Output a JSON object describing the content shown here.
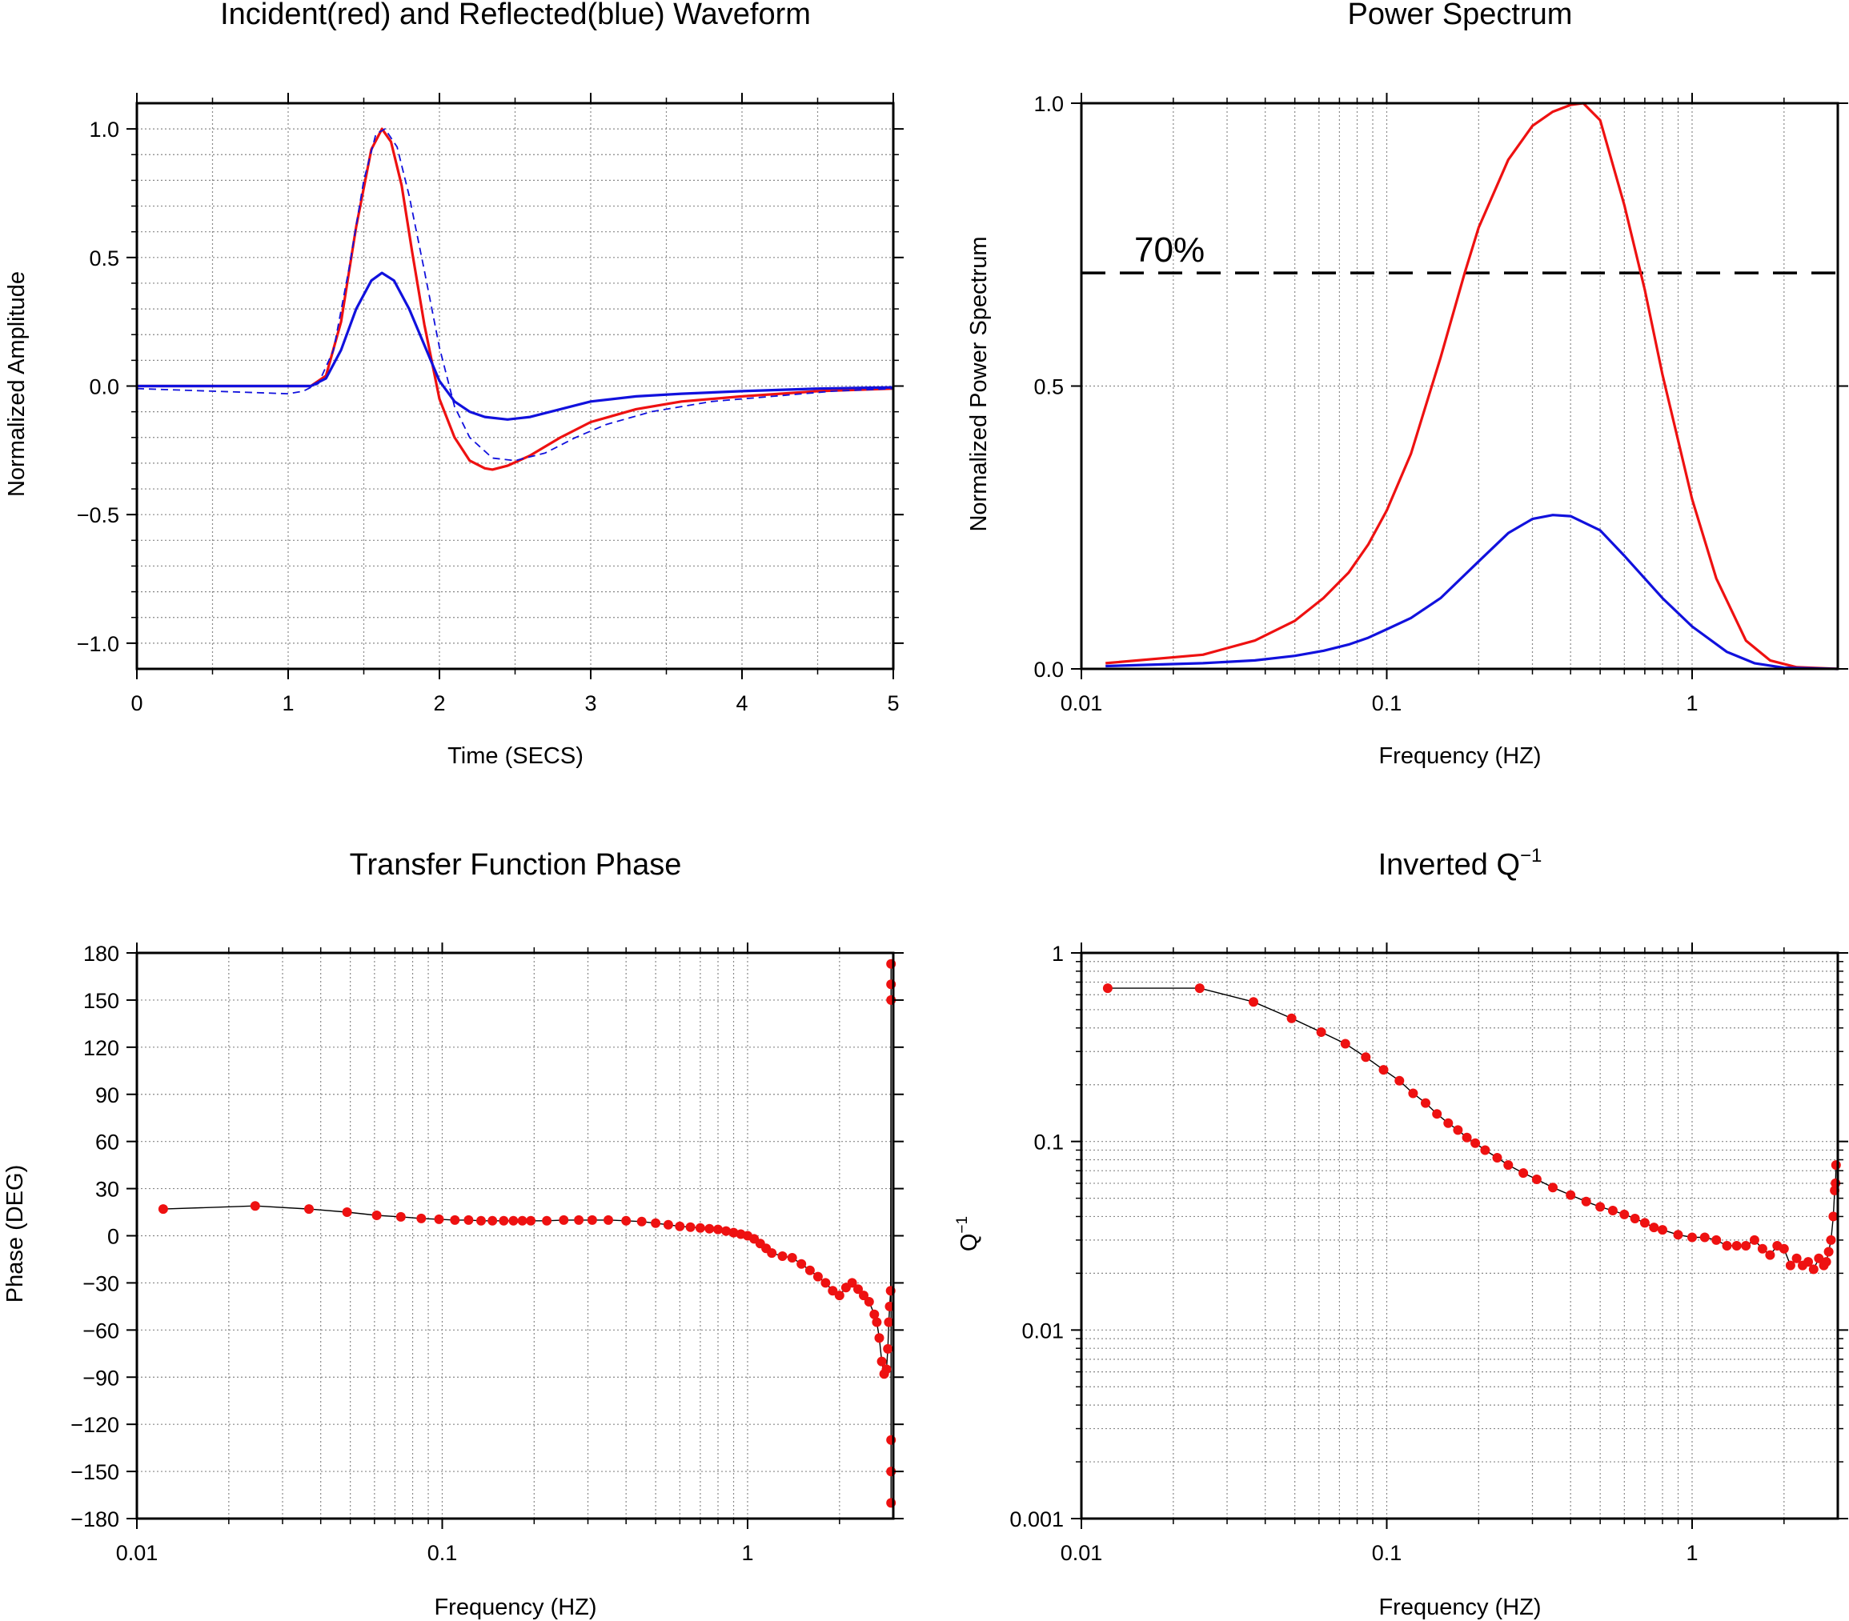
{
  "colors": {
    "red": "#ee1111",
    "blue": "#1111dd",
    "grid": "#888888",
    "black": "#000000"
  },
  "chart_data": [
    {
      "id": "waveform",
      "type": "line",
      "title": "Incident(red) and Reflected(blue) Waveform",
      "xlabel": "Time (SECS)",
      "ylabel": "Normalized Amplitude",
      "xscale": "linear",
      "yscale": "linear",
      "xlim": [
        0,
        5
      ],
      "ylim": [
        -1.1,
        1.1
      ],
      "xticks": [
        0,
        1,
        2,
        3,
        4,
        5
      ],
      "xtick_labels": [
        "0",
        "1",
        "2",
        "3",
        "4",
        "5"
      ],
      "yticks": [
        -1.0,
        -0.5,
        0.0,
        0.5,
        1.0
      ],
      "ytick_labels": [
        "−1.0",
        "−0.5",
        "0.0",
        "0.5",
        "1.0"
      ],
      "grid": true,
      "series": [
        {
          "color": "red",
          "style": "solid",
          "x": [
            0,
            0.5,
            1.0,
            1.15,
            1.25,
            1.35,
            1.45,
            1.55,
            1.62,
            1.68,
            1.75,
            1.82,
            1.9,
            2.0,
            2.1,
            2.2,
            2.3,
            2.35,
            2.45,
            2.6,
            2.8,
            3.0,
            3.3,
            3.6,
            4.0,
            4.5,
            5.0
          ],
          "y": [
            0.0,
            0.0,
            0.0,
            0.0,
            0.04,
            0.25,
            0.62,
            0.92,
            1.0,
            0.95,
            0.78,
            0.52,
            0.24,
            -0.05,
            -0.2,
            -0.29,
            -0.32,
            -0.325,
            -0.31,
            -0.27,
            -0.2,
            -0.14,
            -0.09,
            -0.06,
            -0.04,
            -0.02,
            -0.01
          ]
        },
        {
          "color": "blue",
          "style": "solid",
          "x": [
            0,
            0.5,
            1.0,
            1.15,
            1.25,
            1.35,
            1.45,
            1.55,
            1.62,
            1.7,
            1.8,
            1.9,
            2.0,
            2.1,
            2.2,
            2.3,
            2.45,
            2.6,
            2.8,
            3.0,
            3.3,
            3.6,
            4.0,
            4.5,
            5.0
          ],
          "y": [
            0.0,
            0.0,
            0.0,
            0.0,
            0.03,
            0.14,
            0.3,
            0.41,
            0.44,
            0.41,
            0.3,
            0.16,
            0.02,
            -0.06,
            -0.1,
            -0.12,
            -0.13,
            -0.12,
            -0.09,
            -0.06,
            -0.04,
            -0.03,
            -0.02,
            -0.01,
            -0.005
          ]
        },
        {
          "color": "blue",
          "style": "dashed",
          "x": [
            0,
            0.5,
            1.0,
            1.1,
            1.2,
            1.3,
            1.4,
            1.5,
            1.58,
            1.64,
            1.72,
            1.8,
            1.9,
            2.0,
            2.1,
            2.2,
            2.35,
            2.5,
            2.7,
            2.9,
            3.1,
            3.4,
            3.8,
            4.2,
            4.6,
            5.0
          ],
          "y": [
            -0.01,
            -0.02,
            -0.03,
            -0.02,
            0.01,
            0.14,
            0.45,
            0.8,
            0.98,
            1.0,
            0.93,
            0.74,
            0.45,
            0.15,
            -0.08,
            -0.2,
            -0.28,
            -0.29,
            -0.26,
            -0.2,
            -0.15,
            -0.1,
            -0.06,
            -0.04,
            -0.02,
            -0.01
          ]
        }
      ]
    },
    {
      "id": "spectrum",
      "type": "line",
      "title": "Power Spectrum",
      "xlabel": "Frequency (HZ)",
      "ylabel": "Normalized Power Spectrum",
      "xscale": "log",
      "yscale": "linear",
      "xlim": [
        0.01,
        3
      ],
      "ylim": [
        0,
        1
      ],
      "xticks": [
        0.01,
        0.1,
        1
      ],
      "xtick_labels": [
        "0.01",
        "0.1",
        "1"
      ],
      "yticks": [
        0.0,
        0.5,
        1.0
      ],
      "ytick_labels": [
        "0.0",
        "0.5",
        "1.0"
      ],
      "grid": true,
      "annotations": [
        {
          "type": "hline",
          "y": 0.7,
          "style": "dashed",
          "label": "70%"
        }
      ],
      "series": [
        {
          "color": "red",
          "style": "solid",
          "x": [
            0.012,
            0.025,
            0.037,
            0.05,
            0.062,
            0.075,
            0.087,
            0.1,
            0.12,
            0.15,
            0.18,
            0.2,
            0.25,
            0.3,
            0.35,
            0.4,
            0.44,
            0.5,
            0.6,
            0.7,
            0.8,
            1.0,
            1.2,
            1.5,
            1.8,
            2.2,
            3.0
          ],
          "y": [
            0.01,
            0.025,
            0.05,
            0.085,
            0.125,
            0.17,
            0.22,
            0.28,
            0.38,
            0.55,
            0.7,
            0.78,
            0.9,
            0.96,
            0.985,
            0.997,
            1.0,
            0.97,
            0.82,
            0.67,
            0.52,
            0.3,
            0.16,
            0.05,
            0.015,
            0.003,
            0.0
          ]
        },
        {
          "color": "blue",
          "style": "solid",
          "x": [
            0.012,
            0.025,
            0.037,
            0.05,
            0.062,
            0.075,
            0.087,
            0.1,
            0.12,
            0.15,
            0.2,
            0.25,
            0.3,
            0.35,
            0.4,
            0.5,
            0.6,
            0.8,
            1.0,
            1.3,
            1.6,
            2.0,
            3.0
          ],
          "y": [
            0.005,
            0.01,
            0.015,
            0.023,
            0.032,
            0.043,
            0.055,
            0.07,
            0.09,
            0.125,
            0.19,
            0.24,
            0.265,
            0.272,
            0.27,
            0.245,
            0.2,
            0.125,
            0.075,
            0.03,
            0.01,
            0.002,
            0.0
          ]
        }
      ]
    },
    {
      "id": "phase",
      "type": "scatter",
      "title": "Transfer Function Phase",
      "xlabel": "Frequency (HZ)",
      "ylabel": "Phase (DEG)",
      "xscale": "log",
      "yscale": "linear",
      "xlim": [
        0.01,
        3
      ],
      "ylim": [
        -180,
        180
      ],
      "xticks": [
        0.01,
        0.1,
        1
      ],
      "xtick_labels": [
        "0.01",
        "0.1",
        "1"
      ],
      "yticks": [
        -180,
        -150,
        -120,
        -90,
        -60,
        -30,
        0,
        30,
        60,
        90,
        120,
        150,
        180
      ],
      "ytick_labels": [
        "−180",
        "−150",
        "−120",
        "−90",
        "−60",
        "−30",
        "0",
        "30",
        "60",
        "90",
        "120",
        "150",
        "180"
      ],
      "grid": true,
      "series": [
        {
          "color": "red",
          "line_color": "black",
          "marker": "circle",
          "x": [
            0.0122,
            0.0244,
            0.0366,
            0.0488,
            0.061,
            0.0732,
            0.0854,
            0.0976,
            0.11,
            0.122,
            0.134,
            0.146,
            0.159,
            0.171,
            0.183,
            0.195,
            0.22,
            0.25,
            0.28,
            0.31,
            0.35,
            0.4,
            0.45,
            0.5,
            0.55,
            0.6,
            0.65,
            0.7,
            0.75,
            0.8,
            0.85,
            0.9,
            0.95,
            1.0,
            1.05,
            1.1,
            1.15,
            1.2,
            1.3,
            1.4,
            1.5,
            1.6,
            1.7,
            1.8,
            1.9,
            2.0,
            2.1,
            2.2,
            2.3,
            2.4,
            2.5,
            2.6,
            2.65,
            2.7,
            2.75,
            2.8,
            2.85,
            2.88,
            2.9,
            2.92,
            2.94,
            2.95,
            2.95,
            2.95,
            2.95,
            2.95,
            2.95
          ],
          "y": [
            17,
            19,
            17,
            15,
            13,
            12,
            11,
            10.5,
            10,
            10,
            9.5,
            9.5,
            9.5,
            9.5,
            9.5,
            9.5,
            9.5,
            10,
            10,
            10,
            10,
            9.5,
            9,
            8,
            7,
            6,
            5.5,
            5,
            4.5,
            4,
            3,
            2,
            1,
            0,
            -2,
            -5,
            -8,
            -11,
            -13,
            -14,
            -18,
            -22,
            -26,
            -30,
            -35,
            -38,
            -33,
            -30,
            -34,
            -38,
            -42,
            -50,
            -55,
            -65,
            -80,
            -88,
            -85,
            -72,
            -55,
            -45,
            -35,
            150,
            160,
            173,
            -130,
            -150,
            -170
          ]
        }
      ]
    },
    {
      "id": "qinv",
      "type": "scatter",
      "title": "Inverted Q",
      "title_sup": "−1",
      "xlabel": "Frequency (HZ)",
      "ylabel": "Q",
      "ylabel_sup": "−1",
      "xscale": "log",
      "yscale": "log",
      "xlim": [
        0.01,
        3
      ],
      "ylim": [
        0.001,
        1
      ],
      "xticks": [
        0.01,
        0.1,
        1
      ],
      "xtick_labels": [
        "0.01",
        "0.1",
        "1"
      ],
      "yticks": [
        0.001,
        0.01,
        0.1,
        1
      ],
      "ytick_labels": [
        "0.001",
        "0.01",
        "0.1",
        "1"
      ],
      "grid": true,
      "series": [
        {
          "color": "red",
          "line_color": "black",
          "marker": "circle",
          "x": [
            0.0122,
            0.0244,
            0.0366,
            0.0488,
            0.061,
            0.0732,
            0.0854,
            0.0976,
            0.11,
            0.122,
            0.134,
            0.146,
            0.159,
            0.171,
            0.183,
            0.195,
            0.21,
            0.23,
            0.25,
            0.28,
            0.31,
            0.35,
            0.4,
            0.45,
            0.5,
            0.55,
            0.6,
            0.65,
            0.7,
            0.75,
            0.8,
            0.9,
            1.0,
            1.1,
            1.2,
            1.3,
            1.4,
            1.5,
            1.6,
            1.7,
            1.8,
            1.9,
            2.0,
            2.1,
            2.2,
            2.3,
            2.4,
            2.5,
            2.6,
            2.7,
            2.75,
            2.8,
            2.85,
            2.9,
            2.93,
            2.95,
            2.96
          ],
          "y": [
            0.65,
            0.65,
            0.55,
            0.45,
            0.38,
            0.33,
            0.28,
            0.24,
            0.21,
            0.18,
            0.16,
            0.14,
            0.125,
            0.115,
            0.105,
            0.098,
            0.09,
            0.082,
            0.075,
            0.068,
            0.063,
            0.057,
            0.052,
            0.048,
            0.045,
            0.043,
            0.041,
            0.039,
            0.037,
            0.035,
            0.034,
            0.032,
            0.031,
            0.031,
            0.03,
            0.028,
            0.028,
            0.028,
            0.03,
            0.027,
            0.025,
            0.028,
            0.027,
            0.022,
            0.024,
            0.022,
            0.023,
            0.021,
            0.024,
            0.022,
            0.023,
            0.026,
            0.03,
            0.04,
            0.055,
            0.06,
            0.075
          ]
        }
      ]
    }
  ]
}
